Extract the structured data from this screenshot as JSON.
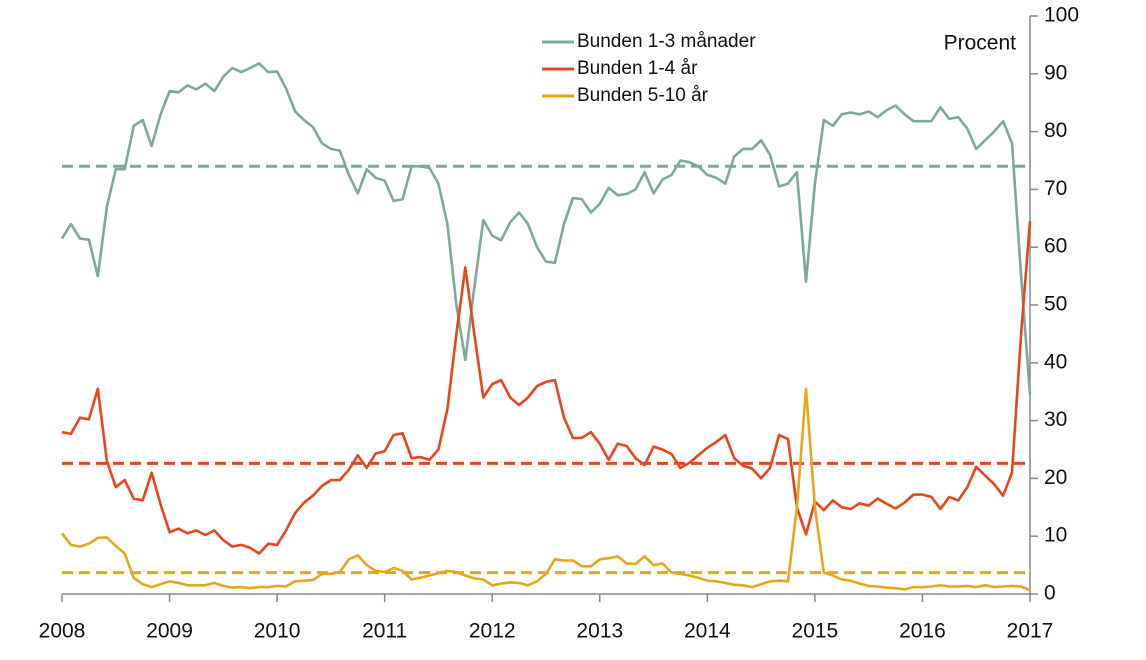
{
  "chart_data": {
    "type": "line",
    "y_axis_label": "Procent",
    "xlim": [
      2008,
      2017
    ],
    "xticks": [
      2008,
      2009,
      2010,
      2011,
      2012,
      2013,
      2014,
      2015,
      2016,
      2017
    ],
    "ylim": [
      0,
      100
    ],
    "yticks": [
      0,
      10,
      20,
      30,
      40,
      50,
      60,
      70,
      80,
      90,
      100
    ],
    "legend": "top",
    "x": [
      2008,
      2008.083,
      2008.167,
      2008.25,
      2008.333,
      2008.417,
      2008.5,
      2008.583,
      2008.667,
      2008.75,
      2008.833,
      2008.917,
      2009,
      2009.083,
      2009.167,
      2009.25,
      2009.333,
      2009.417,
      2009.5,
      2009.583,
      2009.667,
      2009.75,
      2009.833,
      2009.917,
      2010,
      2010.083,
      2010.167,
      2010.25,
      2010.333,
      2010.417,
      2010.5,
      2010.583,
      2010.667,
      2010.75,
      2010.833,
      2010.917,
      2011,
      2011.083,
      2011.167,
      2011.25,
      2011.333,
      2011.417,
      2011.5,
      2011.583,
      2011.667,
      2011.75,
      2011.833,
      2011.917,
      2012,
      2012.083,
      2012.167,
      2012.25,
      2012.333,
      2012.417,
      2012.5,
      2012.583,
      2012.667,
      2012.75,
      2012.833,
      2012.917,
      2013,
      2013.083,
      2013.167,
      2013.25,
      2013.333,
      2013.417,
      2013.5,
      2013.583,
      2013.667,
      2013.75,
      2013.833,
      2013.917,
      2014,
      2014.083,
      2014.167,
      2014.25,
      2014.333,
      2014.417,
      2014.5,
      2014.583,
      2014.667,
      2014.75,
      2014.833,
      2014.917,
      2015,
      2015.083,
      2015.167,
      2015.25,
      2015.333,
      2015.417,
      2015.5,
      2015.583,
      2015.667,
      2015.75,
      2015.833,
      2015.917,
      2016,
      2016.083,
      2016.167,
      2016.25,
      2016.333,
      2016.417,
      2016.5,
      2016.583,
      2016.667,
      2016.75,
      2016.833,
      2016.917,
      2017
    ],
    "series": [
      {
        "name": "Bunden 1-3 månader",
        "color": "#7ea99a",
        "mean": 74,
        "values": [
          61.5,
          64,
          61.5,
          61.3,
          55,
          67,
          73.5,
          73.5,
          81,
          82,
          77.5,
          83,
          87,
          86.8,
          88,
          87.3,
          88.3,
          87,
          89.5,
          91,
          90.3,
          91,
          91.8,
          90.3,
          90.4,
          87.5,
          83.5,
          82,
          80.8,
          78,
          77,
          76.7,
          72.5,
          69.3,
          73.5,
          72,
          71.5,
          68,
          68.3,
          74,
          74,
          73.7,
          71,
          64,
          50,
          40.5,
          53,
          64.7,
          62,
          61.2,
          64.3,
          66,
          64,
          60,
          57.5,
          57.3,
          64,
          68.5,
          68.3,
          66,
          67.5,
          70.3,
          69,
          69.2,
          70,
          73,
          69.3,
          71.7,
          72.5,
          75,
          74.7,
          74,
          72.5,
          72,
          71,
          75.7,
          77,
          77,
          78.5,
          76,
          70.5,
          71,
          73,
          54,
          71,
          82,
          81,
          83,
          83.3,
          83,
          83.5,
          82.5,
          83.7,
          84.5,
          83,
          81.8,
          81.8,
          81.8,
          84.2,
          82.2,
          82.5,
          80.5,
          77,
          78.5,
          80,
          81.8,
          78,
          55,
          34.5
        ]
      },
      {
        "name": "Bunden 1-4 år",
        "color": "#e5461c",
        "mean": 22.6,
        "values": [
          28,
          27.7,
          30.5,
          30.2,
          35.5,
          23,
          18.5,
          19.7,
          16.5,
          16.2,
          21,
          15.5,
          10.7,
          11.3,
          10.5,
          11,
          10.2,
          11,
          9.3,
          8.2,
          8.5,
          8,
          7,
          8.7,
          8.5,
          11,
          14,
          15.8,
          17,
          18.7,
          19.7,
          19.7,
          21.5,
          24,
          21.8,
          24.3,
          24.7,
          27.5,
          27.8,
          23.5,
          23.7,
          23.2,
          25,
          32,
          45,
          56.5,
          45,
          34,
          36.3,
          37,
          34,
          32.7,
          34,
          36,
          36.7,
          37,
          30.5,
          27,
          27,
          28,
          26,
          23.2,
          26,
          25.6,
          23.5,
          22.3,
          25.5,
          25,
          24.2,
          21.8,
          22.7,
          24,
          25.3,
          26.3,
          27.5,
          23.5,
          22.2,
          21.7,
          20,
          21.8,
          27.5,
          26.8,
          15,
          10.3,
          16,
          14.5,
          16.2,
          15,
          14.7,
          15.7,
          15.3,
          16.5,
          15.6,
          14.8,
          15.8,
          17.2,
          17.2,
          16.8,
          14.7,
          16.8,
          16.2,
          18.5,
          22,
          20.5,
          19,
          17,
          21,
          45,
          64.5
        ]
      },
      {
        "name": "Bunden 5-10 år",
        "color": "#e6a61c",
        "mean": 3.7,
        "values": [
          10.5,
          8.5,
          8.2,
          8.7,
          9.7,
          9.8,
          8.3,
          7,
          2.8,
          1.7,
          1.2,
          1.7,
          2.2,
          1.9,
          1.5,
          1.5,
          1.5,
          1.9,
          1.4,
          1.1,
          1.2,
          1,
          1.2,
          1.2,
          1.4,
          1.3,
          2.2,
          2.3,
          2.4,
          3.5,
          3.5,
          3.8,
          6,
          6.7,
          5,
          4,
          3.8,
          4.5,
          4,
          2.5,
          2.8,
          3.2,
          3.6,
          4,
          3.8,
          3.2,
          2.7,
          2.5,
          1.5,
          1.8,
          2,
          1.9,
          1.5,
          2.2,
          3.5,
          6,
          5.8,
          5.8,
          4.8,
          4.8,
          6,
          6.2,
          6.5,
          5.3,
          5.2,
          6.5,
          5,
          5.3,
          3.7,
          3.5,
          3.2,
          2.8,
          2.3,
          2.2,
          1.9,
          1.6,
          1.5,
          1.2,
          1.7,
          2.2,
          2.3,
          2.2,
          15,
          35.5,
          15,
          3.7,
          3.2,
          2.5,
          2.3,
          1.8,
          1.4,
          1.3,
          1.1,
          1,
          0.8,
          1.2,
          1.2,
          1.3,
          1.5,
          1.3,
          1.3,
          1.4,
          1.2,
          1.5,
          1.2,
          1.3,
          1.4,
          1.3,
          0.7
        ]
      }
    ]
  }
}
